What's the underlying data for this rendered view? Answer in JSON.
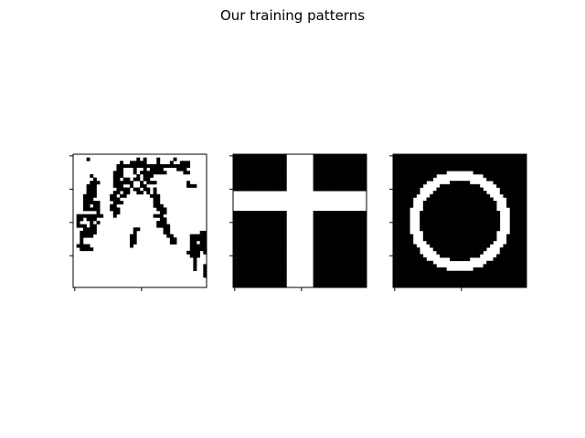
{
  "title": "Our training patterns",
  "chart_data": [
    {
      "type": "heatmap",
      "title": "",
      "colormap": "binary",
      "description_values": "binary noisy image (photo-like)",
      "rows": 40,
      "cols": 40,
      "grid_values": [
        "0000000000000000000000000000000000000000",
        "0000100000000000000101000100001000000000",
        "0000000000000010011111000100010011100000",
        "0000000000000111111111111111111111100000",
        "0000000000000110001001011110000111000000",
        "0000000000001110001011111111000001100000",
        "0000010000001110000101110000000000000000",
        "0000001000001101101101100000000000000000",
        "0000011100001111110010111000000000100000",
        "0000111000001110010011000000000000111000",
        "0000111000000111101101101000000000000000",
        "0000111000001101100110101000000000000000",
        "0001111000011011000000011100000000000000",
        "0001110000011100000000001100000000000000",
        "0001111100001110000000001100000000000000",
        "0001101100011000000000001110000000000000",
        "0001111100011100000000000111000000000000",
        "0000000100001100000000000011000000000000",
        "0111111110001000000000001110000000000000",
        "0110111000000000000000000011000000000000",
        "0100010100000000000000000111000000000000",
        "0111011000000000000000000111100000000000",
        "0001111000000000001100000001100000000000",
        "0011111000000000001000000001100000000011",
        "0011110000000000011000000000110000011111",
        "0010000000000000011000000000011000011111",
        "0010000000000000011000000000011000011011",
        "0111100000000000010000000000000000011111",
        "0011110000000000000000000000000000011111",
        "0000000000000000000000000000000000111101",
        "0000000000000000000000000000000000011100",
        "0000000000000000000000000000000000001000",
        "0000000000000000000000000000000000001000",
        "0000000000000000000000000000000000001001",
        "0000000000000000000000000000000000001001",
        "0000000000000000000000000000000000000001",
        "0000000000000000000000000000000000000001",
        "0000000000000000000000000000000000000000",
        "0000000000000000000000000000000000000000",
        "0000000000000000000000000000000000000000"
      ]
    },
    {
      "type": "heatmap",
      "title": "",
      "colormap": "binary",
      "rows": 40,
      "cols": 40,
      "pattern": "cross",
      "cross": {
        "horizontal_rows": [
          11,
          16
        ],
        "vertical_cols": [
          16,
          23
        ]
      }
    },
    {
      "type": "heatmap",
      "title": "",
      "colormap": "binary",
      "rows": 40,
      "cols": 40,
      "pattern": "ring",
      "ring": {
        "center": [
          19.5,
          19.5
        ],
        "inner_radius": 12,
        "outer_radius": 15
      }
    }
  ]
}
